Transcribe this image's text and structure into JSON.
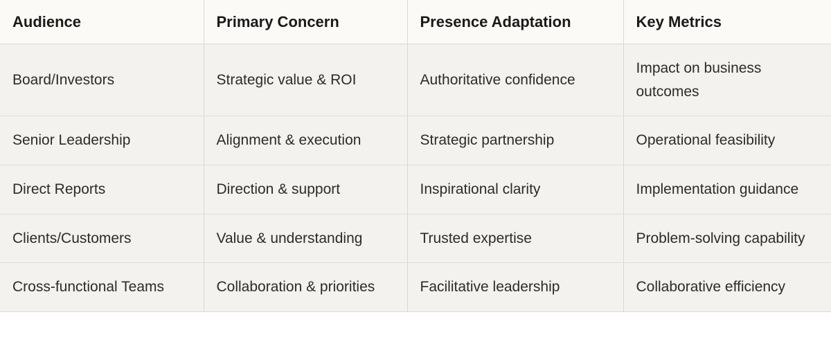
{
  "table": {
    "type": "table",
    "background_color": "#ffffff",
    "header_background": "#fbfaf7",
    "row_background": "#f3f2ee",
    "border_color": "#d8d8d4",
    "header_font_weight": 800,
    "header_font_size_pt": 17,
    "body_font_size_pt": 16,
    "text_color": "#1a1a1a",
    "body_text_color": "#2b2b2b",
    "column_widths_pct": [
      24.5,
      24.5,
      26,
      25
    ],
    "columns": [
      "Audience",
      "Primary Concern",
      "Presence Adaptation",
      "Key Metrics"
    ],
    "rows": [
      [
        "Board/Investors",
        "Strategic value & ROI",
        "Authoritative confidence",
        "Impact on business outcomes"
      ],
      [
        "Senior Leadership",
        "Alignment & execution",
        "Strategic partnership",
        "Operational feasibility"
      ],
      [
        "Direct Reports",
        "Direction & support",
        "Inspirational clarity",
        "Implementation guidance"
      ],
      [
        "Clients/Customers",
        "Value & understanding",
        "Trusted expertise",
        "Problem-solving capability"
      ],
      [
        "Cross-functional Teams",
        "Collaboration & priorities",
        "Facilitative leadership",
        "Collaborative efficiency"
      ]
    ]
  }
}
